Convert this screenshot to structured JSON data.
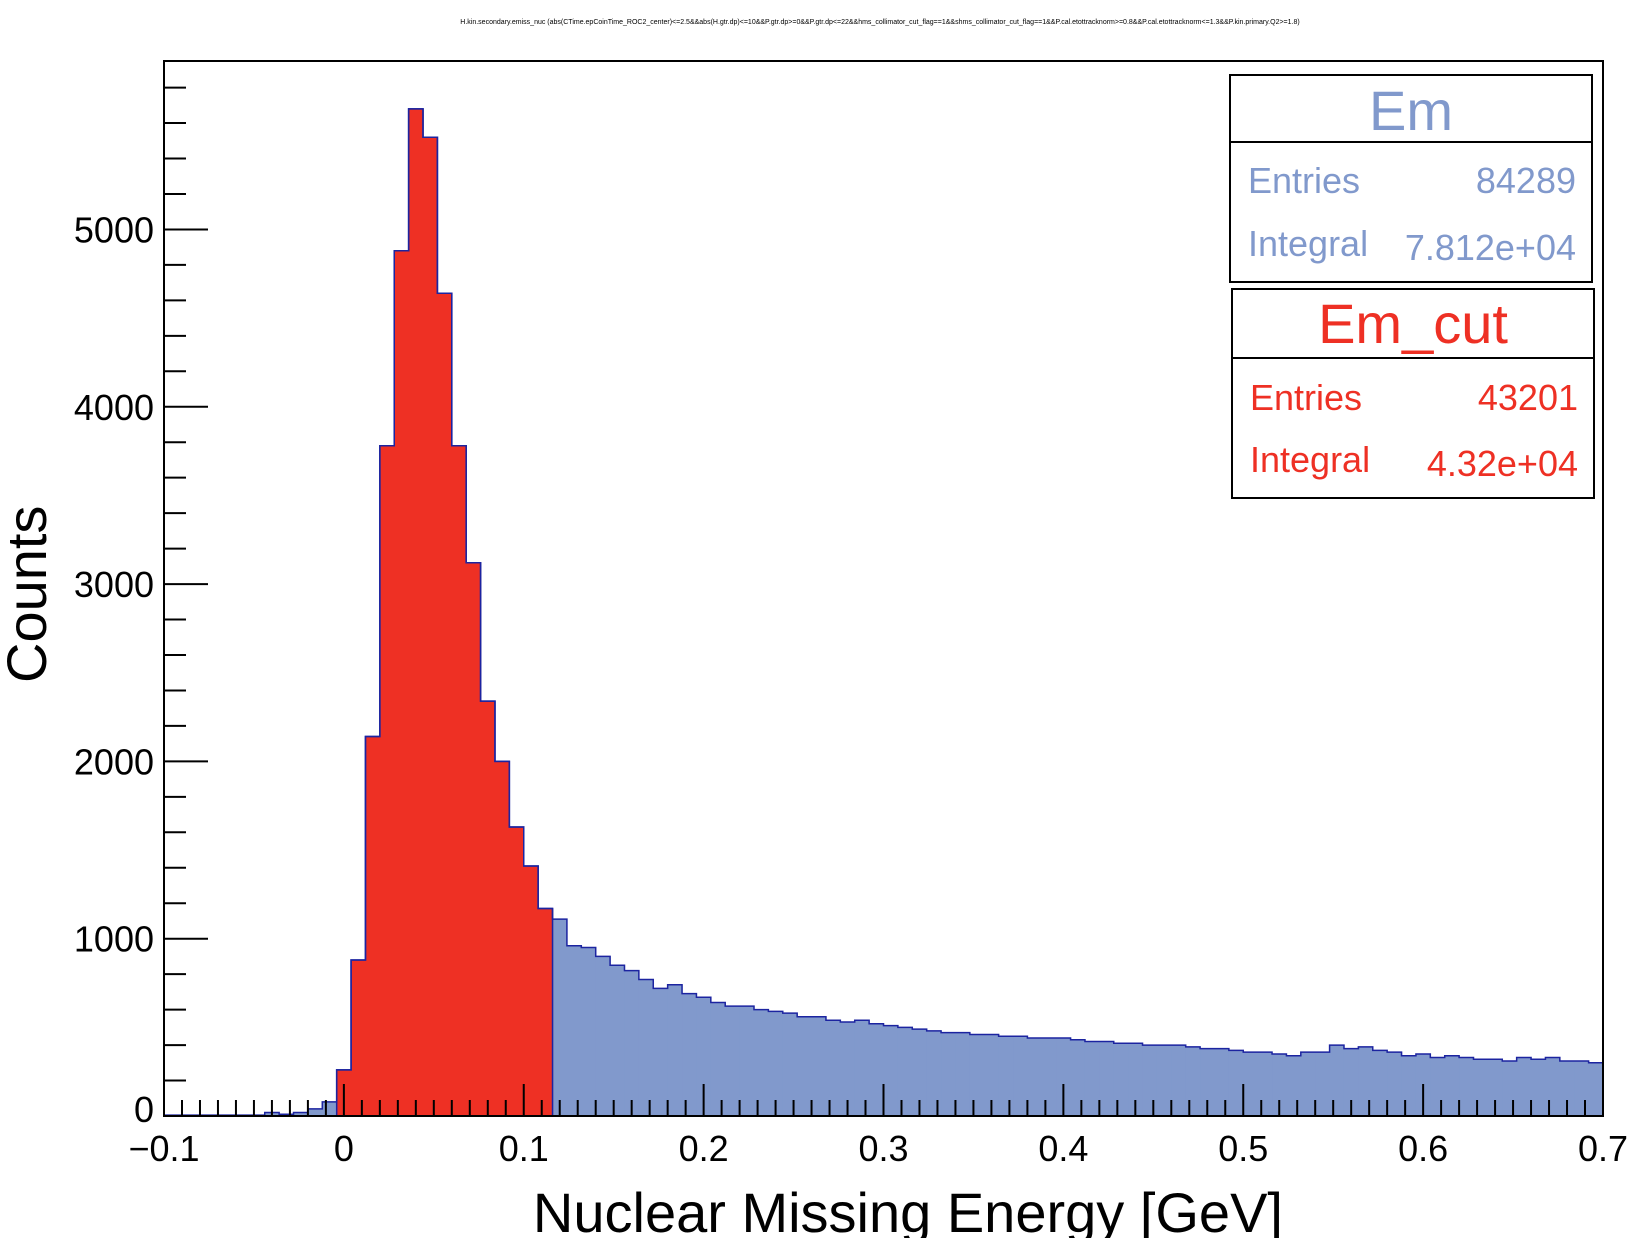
{
  "chart_data": {
    "type": "bar",
    "title": "H.kin.secondary.emiss_nuc (abs(CTime.epCoinTime_ROC2_center)<=2.5&&abs(H.gtr.dp)<=10&&P.gtr.dp>=0&&P.gtr.dp<=22&&hms_collimator_cut_flag==1&&shms_collimator_cut_flag==1&&P.cal.etottracknorm>=0.8&&P.cal.etottracknorm<=1.3&&P.kin.primary.Q2>=1.8)",
    "xlabel": "Nuclear Missing Energy [GeV]",
    "ylabel": "Counts",
    "xlim": [
      -0.1,
      0.7
    ],
    "ylim": [
      0,
      5950
    ],
    "x_ticks": [
      "−0.1",
      "0",
      "0.1",
      "0.2",
      "0.3",
      "0.4",
      "0.5",
      "0.6",
      "0.7"
    ],
    "y_ticks": [
      "0",
      "1000",
      "2000",
      "3000",
      "4000",
      "5000"
    ],
    "bin_width": 0.008,
    "grid": false,
    "legend": "top-right",
    "series": [
      {
        "name": "Em",
        "color": "#8199cc",
        "bin_start": -0.1,
        "values": [
          5,
          5,
          5,
          5,
          5,
          5,
          5,
          20,
          10,
          20,
          40,
          80,
          260,
          880,
          2140,
          3780,
          4880,
          5680,
          5520,
          4640,
          3780,
          3120,
          2340,
          2000,
          1630,
          1410,
          1170,
          1110,
          960,
          950,
          900,
          850,
          820,
          770,
          720,
          740,
          690,
          670,
          640,
          620,
          620,
          600,
          590,
          580,
          560,
          560,
          540,
          530,
          540,
          520,
          510,
          500,
          490,
          480,
          470,
          470,
          460,
          460,
          450,
          450,
          440,
          440,
          440,
          430,
          420,
          420,
          410,
          410,
          400,
          400,
          400,
          390,
          380,
          380,
          370,
          360,
          360,
          350,
          340,
          360,
          360,
          400,
          380,
          390,
          370,
          360,
          340,
          350,
          330,
          340,
          330,
          320,
          320,
          310,
          330,
          320,
          330,
          310,
          310,
          300
        ]
      },
      {
        "name": "Em_cut",
        "color": "#ee3024",
        "bin_start": -0.1,
        "values": [
          0,
          0,
          0,
          0,
          0,
          0,
          0,
          0,
          0,
          0,
          0,
          0,
          260,
          880,
          2140,
          3780,
          4880,
          5680,
          5520,
          4640,
          3780,
          3120,
          2340,
          2000,
          1630,
          1410,
          1170
        ]
      }
    ]
  },
  "stats_boxes": [
    {
      "name": "Em",
      "color": "#8199cc",
      "rows": [
        {
          "label": "Entries",
          "value": "84289"
        },
        {
          "label": "Integral",
          "value": "7.812e+04"
        }
      ]
    },
    {
      "name": "Em_cut",
      "color": "#ee3024",
      "rows": [
        {
          "label": "Entries",
          "value": "43201"
        },
        {
          "label": "Integral",
          "value": "4.32e+04"
        }
      ]
    }
  ]
}
